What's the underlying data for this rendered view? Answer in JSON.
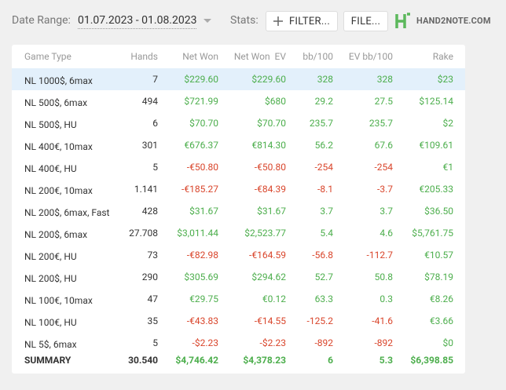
{
  "toolbar": {
    "date_label": "Date Range:",
    "date_range": "01.07.2023 - 01.08.2023",
    "stats_label": "Stats:",
    "filter_button": "FILTER...",
    "file_button": "FILE...",
    "logo": "HAND2NOTE.COM"
  },
  "table": {
    "headers": [
      "Game Type",
      "Hands",
      "Net Won",
      "Net Won  EV",
      "bb/100",
      "EV bb/100",
      "Rake"
    ],
    "rows": [
      [
        "NL 1000$, 6max",
        "7",
        "$229.60",
        "$229.60",
        "328",
        "328",
        "$23"
      ],
      [
        "NL 500$, 6max",
        "494",
        "$721.99",
        "$680",
        "29.2",
        "27.5",
        "$125.14"
      ],
      [
        "NL 500$, HU",
        "6",
        "$70.70",
        "$70.70",
        "235.7",
        "235.7",
        "$2"
      ],
      [
        "NL 400€, 10max",
        "301",
        "€676.37",
        "€814.30",
        "56.2",
        "67.6",
        "€109.61"
      ],
      [
        "NL 400€, HU",
        "5",
        "-€50.80",
        "-€50.80",
        "-254",
        "-254",
        "€1"
      ],
      [
        "NL 200€, 10max",
        "1.141",
        "-€185.27",
        "-€84.39",
        "-8.1",
        "-3.7",
        "€205.33"
      ],
      [
        "NL 200$, 6max, Fast",
        "428",
        "$31.67",
        "$31.67",
        "3.7",
        "3.7",
        "$36.50"
      ],
      [
        "NL 200$, 6max",
        "27.708",
        "$3,011.44",
        "$2,523.77",
        "5.4",
        "4.6",
        "$5,761.75"
      ],
      [
        "NL 200€, HU",
        "73",
        "-€82.98",
        "-€164.59",
        "-56.8",
        "-112.7",
        "€10.57"
      ],
      [
        "NL 200$, HU",
        "290",
        "$305.69",
        "$294.62",
        "52.7",
        "50.8",
        "$78.19"
      ],
      [
        "NL 100€, 10max",
        "47",
        "€29.75",
        "€0.12",
        "63.3",
        "0.3",
        "€8.26"
      ],
      [
        "NL 100€, HU",
        "35",
        "-€43.83",
        "-€14.55",
        "-125.2",
        "-41.6",
        "€3.66"
      ],
      [
        "NL 5$, 6max",
        "5",
        "-$2.23",
        "-$2.23",
        "-892",
        "-892",
        "$0"
      ]
    ],
    "summary": [
      "SUMMARY",
      "30.540",
      "$4,746.42",
      "$4,378.23",
      "6",
      "5.3",
      "$6,398.85"
    ]
  }
}
